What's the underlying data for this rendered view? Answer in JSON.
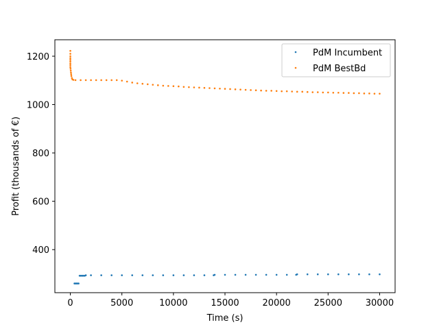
{
  "chart_data": {
    "type": "scatter",
    "xlabel": "Time (s)",
    "ylabel": "Profit (thousands of €)",
    "xlim": [
      -1500,
      31500
    ],
    "ylim": [
      222,
      1268
    ],
    "xticks": [
      0,
      5000,
      10000,
      15000,
      20000,
      25000,
      30000
    ],
    "xtick_labels": [
      "0",
      "5000",
      "10000",
      "15000",
      "20000",
      "25000",
      "30000"
    ],
    "yticks": [
      400,
      600,
      800,
      1000,
      1200
    ],
    "ytick_labels": [
      "400",
      "600",
      "800",
      "1000",
      "1200"
    ],
    "grid": false,
    "legend_position": "top-right",
    "series": [
      {
        "name": "PdM Incumbent",
        "color": "#1f77b4",
        "points": [
          [
            400,
            260
          ],
          [
            500,
            260
          ],
          [
            600,
            260
          ],
          [
            700,
            260
          ],
          [
            800,
            260
          ],
          [
            900,
            292
          ],
          [
            1000,
            292
          ],
          [
            1100,
            292
          ],
          [
            1200,
            292
          ],
          [
            1300,
            292
          ],
          [
            1400,
            292
          ],
          [
            1500,
            294
          ],
          [
            2000,
            294
          ],
          [
            3000,
            294
          ],
          [
            4000,
            294
          ],
          [
            5000,
            294
          ],
          [
            6000,
            294
          ],
          [
            7000,
            294
          ],
          [
            8000,
            294
          ],
          [
            9000,
            294
          ],
          [
            10000,
            294
          ],
          [
            11000,
            294
          ],
          [
            12000,
            294
          ],
          [
            13000,
            294
          ],
          [
            13900,
            294
          ],
          [
            14000,
            296
          ],
          [
            15000,
            296
          ],
          [
            16000,
            296
          ],
          [
            17000,
            296
          ],
          [
            18000,
            296
          ],
          [
            19000,
            296
          ],
          [
            20000,
            296
          ],
          [
            21000,
            296
          ],
          [
            21900,
            296
          ],
          [
            22000,
            298
          ],
          [
            23000,
            298
          ],
          [
            24000,
            298
          ],
          [
            25000,
            298
          ],
          [
            26000,
            298
          ],
          [
            27000,
            298
          ],
          [
            28000,
            298
          ],
          [
            29000,
            298
          ],
          [
            30000,
            298
          ]
        ]
      },
      {
        "name": "PdM BestBd",
        "color": "#ff7f0e",
        "points": [
          [
            0,
            1222
          ],
          [
            0,
            1210
          ],
          [
            0,
            1200
          ],
          [
            0,
            1192
          ],
          [
            0,
            1185
          ],
          [
            0,
            1178
          ],
          [
            0,
            1170
          ],
          [
            0,
            1163
          ],
          [
            0,
            1155
          ],
          [
            20,
            1148
          ],
          [
            40,
            1140
          ],
          [
            60,
            1132
          ],
          [
            80,
            1125
          ],
          [
            100,
            1118
          ],
          [
            150,
            1110
          ],
          [
            200,
            1104
          ],
          [
            300,
            1102
          ],
          [
            500,
            1101
          ],
          [
            1000,
            1101
          ],
          [
            1500,
            1101
          ],
          [
            2000,
            1101
          ],
          [
            2500,
            1101
          ],
          [
            3000,
            1101
          ],
          [
            3500,
            1101
          ],
          [
            4000,
            1101
          ],
          [
            4500,
            1101
          ],
          [
            5000,
            1099
          ],
          [
            5500,
            1095
          ],
          [
            6000,
            1091
          ],
          [
            6500,
            1088
          ],
          [
            7000,
            1086
          ],
          [
            7500,
            1084
          ],
          [
            8000,
            1082
          ],
          [
            8500,
            1080
          ],
          [
            9000,
            1078
          ],
          [
            9500,
            1077
          ],
          [
            10000,
            1076
          ],
          [
            10500,
            1075
          ],
          [
            11000,
            1073
          ],
          [
            11500,
            1072
          ],
          [
            12000,
            1071
          ],
          [
            12500,
            1070
          ],
          [
            13000,
            1069
          ],
          [
            13500,
            1068
          ],
          [
            14000,
            1067
          ],
          [
            14500,
            1066
          ],
          [
            15000,
            1065
          ],
          [
            15500,
            1064
          ],
          [
            16000,
            1063
          ],
          [
            16500,
            1062
          ],
          [
            17000,
            1061
          ],
          [
            17500,
            1060
          ],
          [
            18000,
            1059
          ],
          [
            18500,
            1058
          ],
          [
            19000,
            1057
          ],
          [
            19500,
            1057
          ],
          [
            20000,
            1056
          ],
          [
            20500,
            1055
          ],
          [
            21000,
            1055
          ],
          [
            21500,
            1054
          ],
          [
            22000,
            1053
          ],
          [
            22500,
            1053
          ],
          [
            23000,
            1052
          ],
          [
            23500,
            1051
          ],
          [
            24000,
            1051
          ],
          [
            24500,
            1050
          ],
          [
            25000,
            1050
          ],
          [
            25500,
            1049
          ],
          [
            26000,
            1049
          ],
          [
            26500,
            1048
          ],
          [
            27000,
            1048
          ],
          [
            27500,
            1047
          ],
          [
            28000,
            1047
          ],
          [
            28500,
            1046
          ],
          [
            29000,
            1046
          ],
          [
            29500,
            1045
          ],
          [
            30000,
            1045
          ]
        ]
      }
    ]
  }
}
